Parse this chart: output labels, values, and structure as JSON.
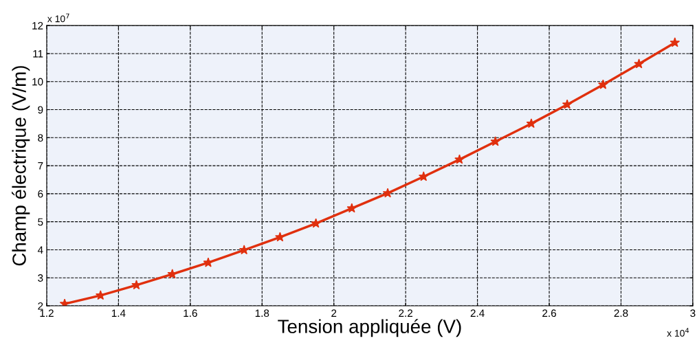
{
  "chart_data": {
    "type": "line",
    "xlabel": "Tension appliquée (V)",
    "ylabel": "Champ électrique (V/m)",
    "x": [
      1.25,
      1.35,
      1.45,
      1.55,
      1.65,
      1.75,
      1.85,
      1.95,
      2.05,
      2.15,
      2.25,
      2.35,
      2.45,
      2.55,
      2.65,
      2.75,
      2.85,
      2.95
    ],
    "series": [
      {
        "color": "#e0300e",
        "values": [
          2.07,
          2.37,
          2.74,
          3.13,
          3.54,
          3.99,
          4.45,
          4.94,
          5.48,
          6.02,
          6.61,
          7.22,
          7.86,
          8.5,
          9.18,
          9.89,
          10.63,
          11.39
        ]
      }
    ],
    "xlim": [
      1.2,
      3
    ],
    "xticks": [
      1.2,
      1.4,
      1.6,
      1.8,
      2,
      2.2,
      2.4,
      2.6,
      2.8,
      3
    ],
    "ylim": [
      2,
      12
    ],
    "yticks": [
      2,
      3,
      4,
      5,
      6,
      7,
      8,
      9,
      10,
      11,
      12
    ],
    "annotations": [
      "x 10$^{7}$",
      "x 10$^{4}$"
    ],
    "grid": true,
    "marker": "star",
    "line_style": "solid"
  }
}
